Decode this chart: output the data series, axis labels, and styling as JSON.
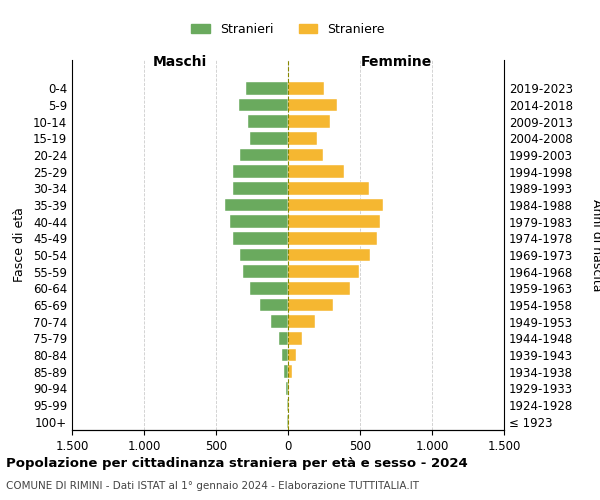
{
  "age_groups": [
    "100+",
    "95-99",
    "90-94",
    "85-89",
    "80-84",
    "75-79",
    "70-74",
    "65-69",
    "60-64",
    "55-59",
    "50-54",
    "45-49",
    "40-44",
    "35-39",
    "30-34",
    "25-29",
    "20-24",
    "15-19",
    "10-14",
    "5-9",
    "0-4"
  ],
  "birth_years": [
    "≤ 1923",
    "1924-1928",
    "1929-1933",
    "1934-1938",
    "1939-1943",
    "1944-1948",
    "1949-1953",
    "1954-1958",
    "1959-1963",
    "1964-1968",
    "1969-1973",
    "1974-1978",
    "1979-1983",
    "1984-1988",
    "1989-1993",
    "1994-1998",
    "1999-2003",
    "2004-2008",
    "2009-2013",
    "2014-2018",
    "2019-2023"
  ],
  "males": [
    5,
    5,
    15,
    25,
    40,
    65,
    120,
    195,
    265,
    310,
    335,
    380,
    400,
    435,
    385,
    380,
    335,
    265,
    280,
    340,
    290
  ],
  "females": [
    5,
    5,
    10,
    30,
    55,
    100,
    185,
    310,
    430,
    490,
    570,
    620,
    640,
    660,
    560,
    390,
    240,
    200,
    295,
    340,
    250
  ],
  "male_color": "#6aaa5e",
  "female_color": "#f5b731",
  "background_color": "#ffffff",
  "grid_color": "#cccccc",
  "title": "Popolazione per cittadinanza straniera per età e sesso - 2024",
  "subtitle1": "COMUNE DI RIMINI - Dati ISTAT al 1° gennaio 2024 - Elaborazione TUTTITALIA.IT",
  "legend_male": "Stranieri",
  "legend_female": "Straniere",
  "xlabel_left": "Maschi",
  "xlabel_right": "Femmine",
  "ylabel_left": "Fasce di età",
  "ylabel_right": "Anni di nascita",
  "xlim": 1500,
  "xticks": [
    -1500,
    -1000,
    -500,
    0,
    500,
    1000,
    1500
  ],
  "xticklabels": [
    "1.500",
    "1.000",
    "500",
    "0",
    "500",
    "1.000",
    "1.500"
  ]
}
